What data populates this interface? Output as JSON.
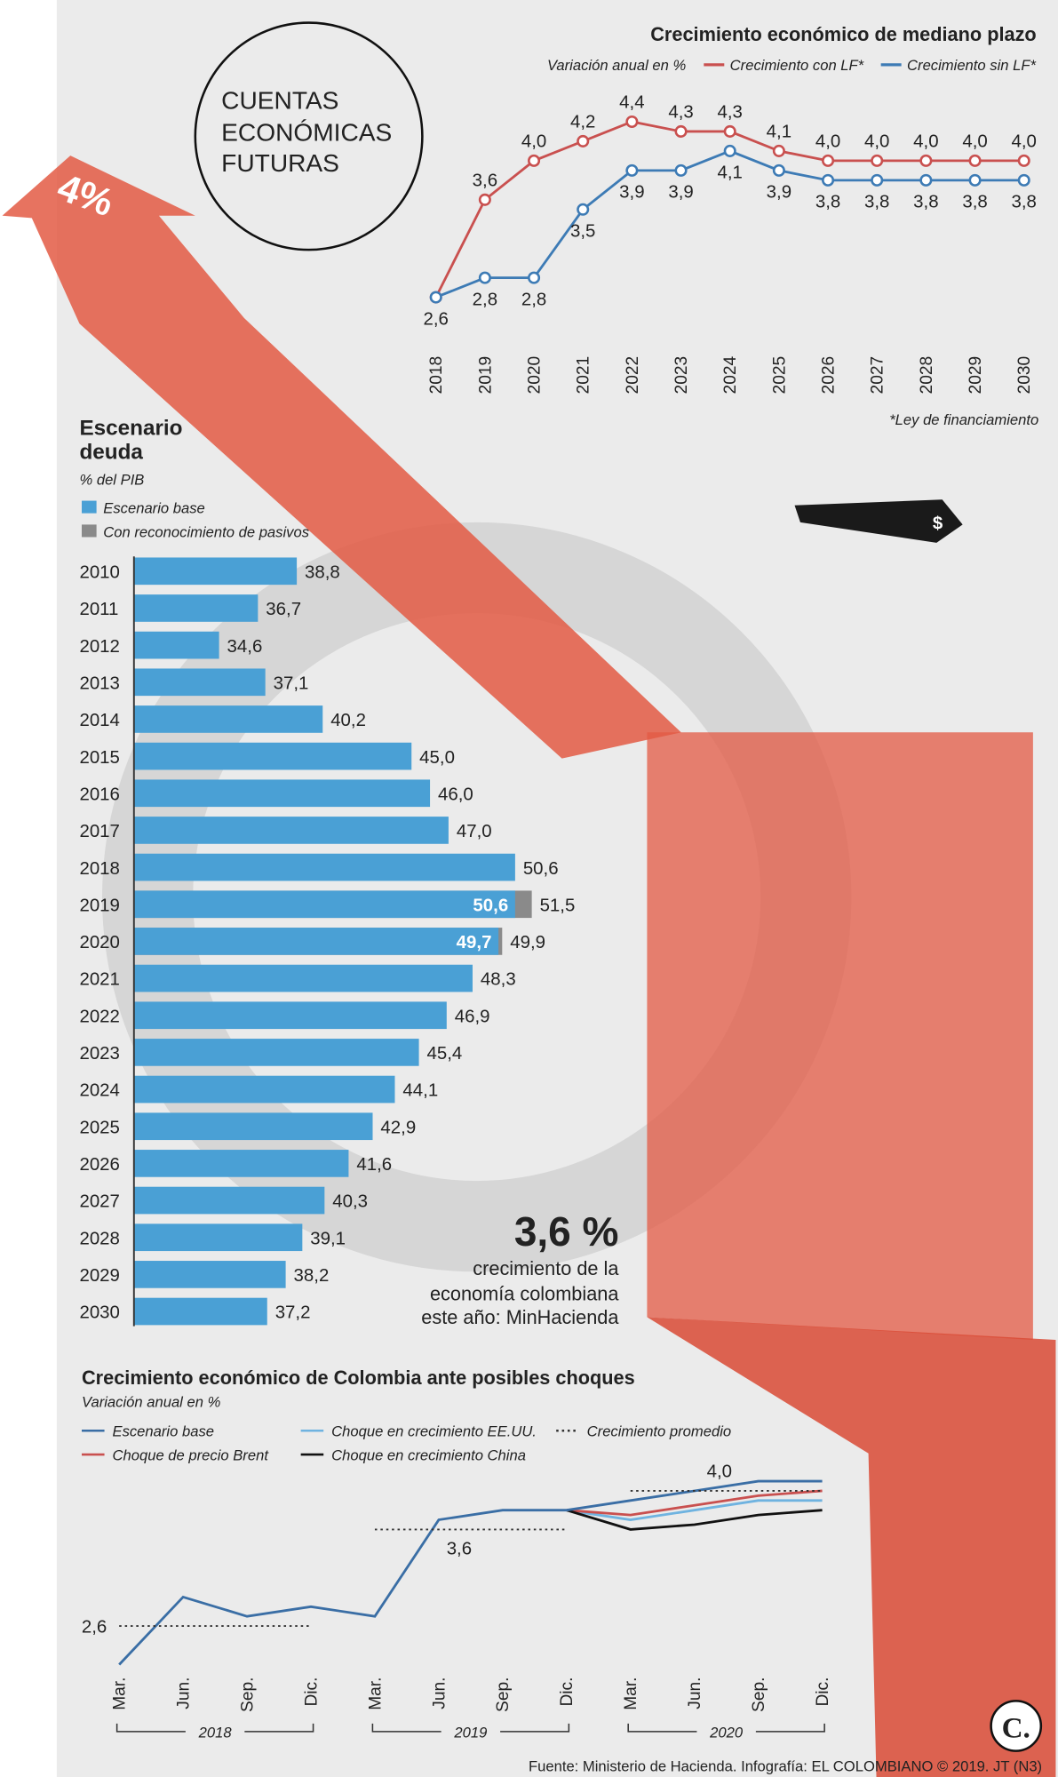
{
  "header": {
    "title_lines": [
      "CUENTAS",
      "ECONÓMICAS",
      "FUTURAS"
    ],
    "arrow_label": "4%",
    "tie_label": "$"
  },
  "chart_data": [
    {
      "type": "line",
      "title": "Crecimiento económico de mediano plazo",
      "subtitle": "Variación anual en %",
      "note": "*Ley de financiamiento",
      "categories": [
        "2018",
        "2019",
        "2020",
        "2021",
        "2022",
        "2023",
        "2024",
        "2025",
        "2026",
        "2027",
        "2028",
        "2029",
        "2030"
      ],
      "ylim": [
        2.4,
        4.6
      ],
      "series": [
        {
          "name": "Crecimiento con LF*",
          "color": "#c9504f",
          "values": [
            2.6,
            3.6,
            4.0,
            4.2,
            4.4,
            4.3,
            4.3,
            4.1,
            4.0,
            4.0,
            4.0,
            4.0,
            4.0
          ],
          "value_labels": [
            null,
            "3,6",
            "4,0",
            "4,2",
            "4,4",
            "4,3",
            "4,3",
            "4,1",
            "4,0",
            "4,0",
            "4,0",
            "4,0",
            "4,0"
          ]
        },
        {
          "name": "Crecimiento sin LF*",
          "color": "#3d7bb5",
          "values": [
            2.6,
            2.8,
            2.8,
            3.5,
            3.9,
            3.9,
            4.1,
            3.9,
            3.8,
            3.8,
            3.8,
            3.8,
            3.8
          ],
          "value_labels": [
            "2,6",
            "2,8",
            "2,8",
            "3,5",
            "3,9",
            "3,9",
            "4,1",
            "3,9",
            "3,8",
            "3,8",
            "3,8",
            "3,8",
            "3,8"
          ]
        }
      ]
    },
    {
      "type": "bar",
      "orientation": "horizontal",
      "title": [
        "Escenario",
        "deuda"
      ],
      "subtitle": "% del PIB",
      "categories": [
        "2010",
        "2011",
        "2012",
        "2013",
        "2014",
        "2015",
        "2016",
        "2017",
        "2018",
        "2019",
        "2020",
        "2021",
        "2022",
        "2023",
        "2024",
        "2025",
        "2026",
        "2027",
        "2028",
        "2029",
        "2030"
      ],
      "xlim": [
        30,
        55
      ],
      "series": [
        {
          "name": "Escenario base",
          "color": "#4aa0d5",
          "values": [
            38.8,
            36.7,
            34.6,
            37.1,
            40.2,
            45.0,
            46.0,
            47.0,
            50.6,
            50.6,
            49.7,
            48.3,
            46.9,
            45.4,
            44.1,
            42.9,
            41.6,
            40.3,
            39.1,
            38.2,
            37.2
          ],
          "value_labels": [
            "38,8",
            "36,7",
            "34,6",
            "37,1",
            "40,2",
            "45,0",
            "46,0",
            "47,0",
            "50,6",
            "50,6",
            "49,7",
            "48,3",
            "46,9",
            "45,4",
            "44,1",
            "42,9",
            "41,6",
            "40,3",
            "39,1",
            "38,2",
            "37,2"
          ]
        },
        {
          "name": "Con reconocimiento de pasivos",
          "color": "#8a8a8a",
          "values": [
            null,
            null,
            null,
            null,
            null,
            null,
            null,
            null,
            null,
            51.5,
            49.9,
            null,
            null,
            null,
            null,
            null,
            null,
            null,
            null,
            null,
            null
          ],
          "value_labels": [
            null,
            null,
            null,
            null,
            null,
            null,
            null,
            null,
            null,
            "51,5",
            "49,9",
            null,
            null,
            null,
            null,
            null,
            null,
            null,
            null,
            null,
            null
          ]
        }
      ]
    },
    {
      "type": "line",
      "title": "Crecimiento económico de Colombia ante posibles choques",
      "subtitle": "Variación anual en %",
      "categories": [
        "Mar.",
        "Jun.",
        "Sep.",
        "Dic.",
        "Mar.",
        "Jun.",
        "Sep.",
        "Dic.",
        "Mar.",
        "Jun.",
        "Sep.",
        "Dic."
      ],
      "groups": [
        "2018",
        "2019",
        "2020"
      ],
      "ylim": [
        2.0,
        4.4
      ],
      "series": [
        {
          "name": "Escenario base",
          "color": "#3a6ea5",
          "values": [
            2.2,
            2.9,
            2.7,
            2.8,
            2.7,
            3.7,
            3.8,
            3.8,
            3.9,
            4.0,
            4.1,
            4.1
          ]
        },
        {
          "name": "Choque de precio Brent",
          "color": "#c9504f",
          "values": [
            null,
            null,
            null,
            null,
            null,
            null,
            null,
            3.8,
            3.75,
            3.85,
            3.95,
            4.0
          ]
        },
        {
          "name": "Choque en crecimiento EE.UU.",
          "color": "#6fb3e0",
          "values": [
            null,
            null,
            null,
            null,
            null,
            null,
            null,
            3.8,
            3.7,
            3.8,
            3.9,
            3.9
          ]
        },
        {
          "name": "Choque en crecimiento China",
          "color": "#111111",
          "values": [
            null,
            null,
            null,
            null,
            null,
            null,
            null,
            3.8,
            3.6,
            3.65,
            3.75,
            3.8
          ]
        },
        {
          "name": "Crecimiento promedio",
          "color": "#333333",
          "style": "dotted",
          "values": [
            2.6,
            2.6,
            2.6,
            2.6,
            3.6,
            3.6,
            3.6,
            3.6,
            4.0,
            4.0,
            4.0,
            4.0
          ],
          "value_labels": [
            "2,6",
            null,
            null,
            null,
            null,
            "3,6",
            null,
            null,
            null,
            "4,0",
            null,
            null
          ]
        }
      ]
    }
  ],
  "annotation": {
    "value": "3,6 %",
    "lines": [
      "crecimiento de la",
      "economía colombiana",
      "este año: MinHacienda"
    ]
  },
  "footer": "Fuente: Ministerio de Hacienda. Infografía: EL COLOMBIANO © 2019. JT (N3)",
  "logo": "C."
}
